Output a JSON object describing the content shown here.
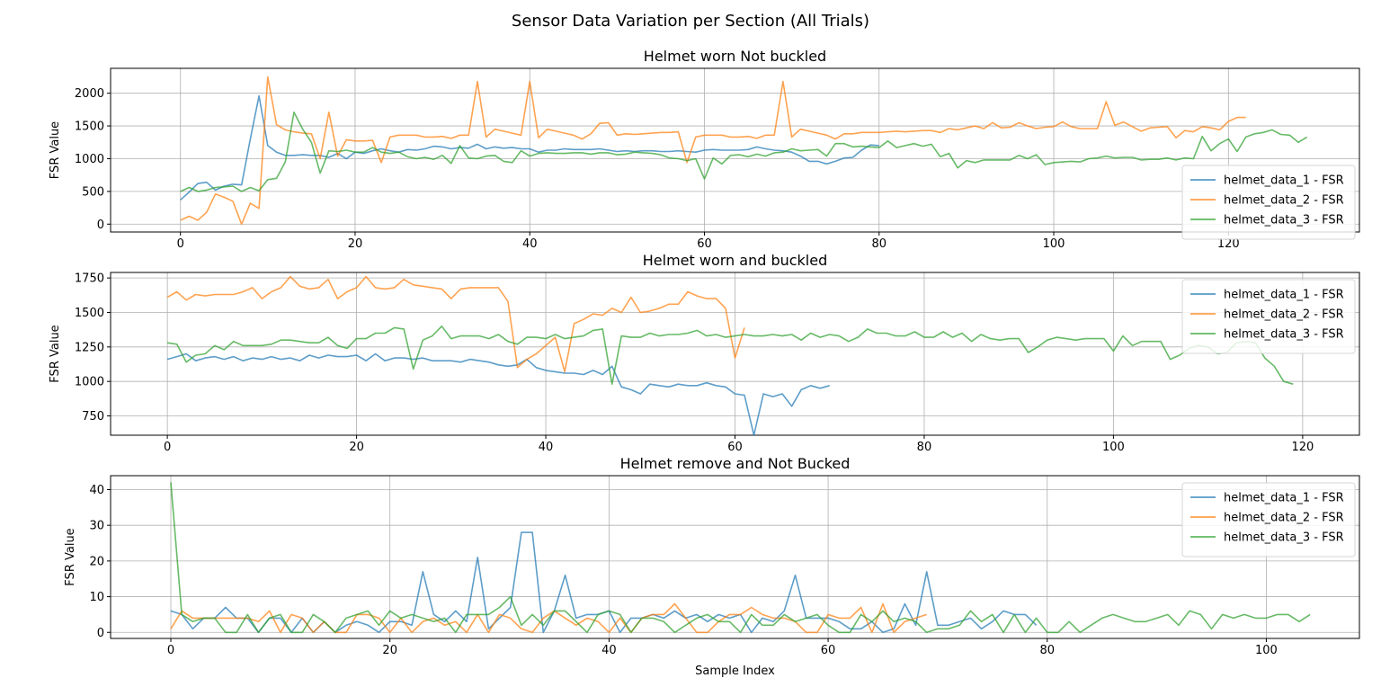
{
  "figure_title": "Sensor Data Variation per Section (All Trials)",
  "chart_data": [
    {
      "type": "line",
      "title": "Helmet worn Not buckled",
      "xlabel": "",
      "ylabel": "FSR Value",
      "xlim": [
        -8,
        135
      ],
      "ylim": [
        -120,
        2380
      ],
      "xticks": [
        0,
        20,
        40,
        60,
        80,
        100,
        120
      ],
      "yticks": [
        0,
        500,
        1000,
        1500,
        2000
      ],
      "grid": true,
      "legend_position": "lower-right",
      "series": [
        {
          "name": "helmet_data_1 - FSR",
          "color": "#1f77b4",
          "values": [
            370,
            490,
            620,
            640,
            520,
            580,
            610,
            600,
            1300,
            1960,
            1200,
            1100,
            1050,
            1050,
            1060,
            1050,
            1050,
            1020,
            1080,
            1000,
            1100,
            1080,
            1120,
            1150,
            1120,
            1100,
            1140,
            1130,
            1150,
            1190,
            1180,
            1150,
            1170,
            1160,
            1220,
            1150,
            1180,
            1160,
            1170,
            1150,
            1150,
            1100,
            1130,
            1130,
            1150,
            1140,
            1140,
            1140,
            1150,
            1130,
            1110,
            1120,
            1110,
            1120,
            1120,
            1110,
            1110,
            1120,
            1110,
            1100,
            1130,
            1140,
            1130,
            1130,
            1130,
            1140,
            1180,
            1150,
            1130,
            1120,
            1100,
            1040,
            960,
            960,
            920,
            960,
            1010,
            1020,
            1130,
            1210,
            1200
          ]
        },
        {
          "name": "helmet_data_2 - FSR",
          "color": "#ff7f0e",
          "values": [
            60,
            120,
            60,
            180,
            460,
            410,
            350,
            0,
            320,
            240,
            2250,
            1520,
            1440,
            1410,
            1390,
            1380,
            1000,
            1710,
            1040,
            1290,
            1270,
            1270,
            1280,
            940,
            1330,
            1360,
            1360,
            1360,
            1330,
            1330,
            1340,
            1310,
            1360,
            1360,
            2180,
            1330,
            1450,
            1420,
            1390,
            1360,
            2180,
            1320,
            1450,
            1420,
            1390,
            1360,
            1300,
            1380,
            1540,
            1550,
            1360,
            1380,
            1370,
            1380,
            1390,
            1400,
            1400,
            1410,
            940,
            1330,
            1360,
            1360,
            1360,
            1330,
            1330,
            1340,
            1310,
            1360,
            1360,
            2180,
            1330,
            1450,
            1420,
            1390,
            1360,
            1300,
            1380,
            1380,
            1400,
            1400,
            1400,
            1410,
            1420,
            1410,
            1420,
            1430,
            1430,
            1400,
            1460,
            1440,
            1470,
            1500,
            1460,
            1550,
            1470,
            1480,
            1550,
            1500,
            1460,
            1480,
            1490,
            1560,
            1490,
            1460,
            1460,
            1460,
            1870,
            1510,
            1560,
            1490,
            1420,
            1470,
            1480,
            1490,
            1320,
            1430,
            1410,
            1490,
            1470,
            1440,
            1570,
            1630,
            1630
          ]
        },
        {
          "name": "helmet_data_3 - FSR",
          "color": "#2ca02c",
          "values": [
            500,
            560,
            500,
            520,
            560,
            570,
            580,
            500,
            560,
            510,
            680,
            700,
            950,
            1710,
            1450,
            1250,
            780,
            1120,
            1110,
            1130,
            1100,
            1100,
            1170,
            1100,
            1080,
            1100,
            1030,
            1000,
            1020,
            990,
            1050,
            930,
            1200,
            1010,
            1000,
            1040,
            1050,
            960,
            940,
            1120,
            1040,
            1080,
            1090,
            1080,
            1080,
            1090,
            1090,
            1070,
            1090,
            1090,
            1060,
            1070,
            1100,
            1090,
            1080,
            1060,
            1010,
            1000,
            970,
            1000,
            690,
            1010,
            920,
            1050,
            1060,
            1030,
            1070,
            1040,
            1090,
            1100,
            1150,
            1120,
            1130,
            1140,
            1040,
            1230,
            1230,
            1180,
            1190,
            1180,
            1170,
            1270,
            1170,
            1200,
            1230,
            1190,
            1220,
            1030,
            1080,
            860,
            970,
            940,
            980,
            980,
            980,
            980,
            1050,
            1000,
            1060,
            910,
            940,
            950,
            960,
            950,
            1000,
            1010,
            1040,
            1010,
            1020,
            1020,
            980,
            990,
            990,
            1010,
            980,
            1010,
            1000,
            1340,
            1120,
            1230,
            1300,
            1110,
            1330,
            1380,
            1400,
            1440,
            1370,
            1360,
            1250,
            1330
          ]
        }
      ]
    },
    {
      "type": "line",
      "title": "Helmet worn and buckled",
      "xlabel": "",
      "ylabel": "FSR Value",
      "xlim": [
        -6,
        126
      ],
      "ylim": [
        610,
        1790
      ],
      "xticks": [
        0,
        20,
        40,
        60,
        80,
        100,
        120
      ],
      "yticks": [
        750,
        1000,
        1250,
        1500,
        1750
      ],
      "grid": true,
      "legend_position": "top-right",
      "series": [
        {
          "name": "helmet_data_1 - FSR",
          "color": "#1f77b4",
          "values": [
            1160,
            1180,
            1200,
            1150,
            1170,
            1180,
            1160,
            1180,
            1150,
            1170,
            1160,
            1180,
            1160,
            1170,
            1150,
            1190,
            1170,
            1190,
            1180,
            1180,
            1190,
            1150,
            1200,
            1150,
            1170,
            1170,
            1160,
            1170,
            1150,
            1150,
            1150,
            1140,
            1160,
            1150,
            1140,
            1120,
            1110,
            1120,
            1160,
            1100,
            1080,
            1070,
            1060,
            1060,
            1050,
            1080,
            1050,
            1110,
            960,
            940,
            910,
            980,
            970,
            960,
            980,
            970,
            970,
            990,
            970,
            960,
            910,
            900,
            610,
            910,
            890,
            910,
            820,
            940,
            970,
            950,
            970
          ]
        },
        {
          "name": "helmet_data_2 - FSR",
          "color": "#ff7f0e",
          "values": [
            1610,
            1650,
            1590,
            1630,
            1620,
            1630,
            1630,
            1630,
            1650,
            1680,
            1600,
            1650,
            1680,
            1760,
            1690,
            1670,
            1680,
            1740,
            1600,
            1650,
            1680,
            1760,
            1680,
            1670,
            1680,
            1740,
            1700,
            1690,
            1680,
            1670,
            1600,
            1670,
            1680,
            1680,
            1680,
            1680,
            1580,
            1100,
            1160,
            1200,
            1260,
            1320,
            1070,
            1420,
            1450,
            1490,
            1480,
            1530,
            1500,
            1610,
            1500,
            1510,
            1530,
            1560,
            1560,
            1650,
            1620,
            1600,
            1600,
            1530,
            1170,
            1390
          ]
        },
        {
          "name": "helmet_data_3 - FSR",
          "color": "#2ca02c",
          "values": [
            1280,
            1270,
            1140,
            1190,
            1200,
            1260,
            1230,
            1290,
            1260,
            1260,
            1260,
            1270,
            1300,
            1300,
            1290,
            1280,
            1280,
            1320,
            1260,
            1240,
            1310,
            1310,
            1350,
            1350,
            1390,
            1380,
            1090,
            1300,
            1330,
            1400,
            1310,
            1330,
            1330,
            1330,
            1310,
            1340,
            1290,
            1270,
            1320,
            1320,
            1310,
            1340,
            1310,
            1320,
            1330,
            1370,
            1380,
            980,
            1330,
            1320,
            1320,
            1350,
            1330,
            1340,
            1340,
            1350,
            1370,
            1330,
            1340,
            1320,
            1330,
            1340,
            1330,
            1330,
            1340,
            1330,
            1340,
            1300,
            1350,
            1320,
            1340,
            1330,
            1290,
            1320,
            1380,
            1350,
            1350,
            1330,
            1330,
            1360,
            1320,
            1320,
            1360,
            1320,
            1350,
            1290,
            1340,
            1310,
            1300,
            1310,
            1310,
            1210,
            1250,
            1300,
            1320,
            1310,
            1300,
            1310,
            1310,
            1310,
            1220,
            1330,
            1260,
            1290,
            1290,
            1290,
            1160,
            1190,
            1240,
            1260,
            1250,
            1200,
            1210,
            1280,
            1290,
            1280,
            1170,
            1110,
            1000,
            980
          ]
        }
      ]
    },
    {
      "type": "line",
      "title": "Helmet remove and Not Bucked",
      "xlabel": "Sample Index",
      "ylabel": "FSR Value",
      "xlim": [
        -5.5,
        108.5
      ],
      "ylim": [
        -1.7,
        43.9
      ],
      "xticks": [
        0,
        20,
        40,
        60,
        80,
        100
      ],
      "yticks": [
        0,
        10,
        20,
        30,
        40
      ],
      "grid": true,
      "legend_position": "top-right",
      "series": [
        {
          "name": "helmet_data_1 - FSR",
          "color": "#1f77b4",
          "values": [
            6,
            5,
            1,
            4,
            4,
            7,
            4,
            4,
            0,
            4,
            4,
            0,
            4,
            0,
            3,
            0,
            2,
            3,
            2,
            0,
            3,
            3,
            2,
            17,
            5,
            3,
            6,
            3,
            21,
            1,
            4,
            7,
            28,
            28,
            0,
            6,
            16,
            4,
            5,
            5,
            6,
            0,
            4,
            4,
            5,
            4,
            6,
            4,
            5,
            3,
            5,
            4,
            5,
            0,
            4,
            3,
            6,
            16,
            4,
            4,
            4,
            3,
            1,
            1,
            3,
            0,
            1,
            8,
            2,
            17,
            2,
            2,
            3,
            4,
            1,
            3,
            6,
            5,
            5,
            2
          ]
        },
        {
          "name": "helmet_data_2 - FSR",
          "color": "#ff7f0e",
          "values": [
            1,
            6,
            4,
            4,
            4,
            4,
            4,
            4,
            3,
            6,
            0,
            5,
            4,
            0,
            3,
            0,
            0,
            5,
            5,
            4,
            0,
            4,
            0,
            3,
            4,
            2,
            3,
            0,
            5,
            0,
            5,
            4,
            1,
            0,
            4,
            6,
            4,
            2,
            4,
            3,
            0,
            4,
            0,
            4,
            5,
            5,
            8,
            4,
            0,
            0,
            3,
            5,
            5,
            7,
            5,
            4,
            4,
            3,
            0,
            0,
            5,
            4,
            4,
            7,
            0,
            8,
            0,
            3,
            4,
            5
          ]
        },
        {
          "name": "helmet_data_3 - FSR",
          "color": "#2ca02c",
          "values": [
            42,
            5,
            3,
            4,
            4,
            0,
            0,
            5,
            0,
            4,
            5,
            0,
            0,
            5,
            3,
            0,
            4,
            5,
            6,
            2,
            6,
            4,
            5,
            4,
            3,
            4,
            0,
            5,
            5,
            5,
            7,
            10,
            2,
            5,
            2,
            6,
            6,
            3,
            0,
            5,
            6,
            5,
            0,
            4,
            4,
            3,
            0,
            2,
            4,
            5,
            3,
            3,
            0,
            5,
            2,
            2,
            5,
            3,
            4,
            5,
            2,
            0,
            0,
            5,
            3,
            6,
            3,
            4,
            3,
            0,
            1,
            1,
            2,
            6,
            3,
            5,
            0,
            5,
            0,
            4,
            0,
            0,
            3,
            0,
            2,
            4,
            5,
            4,
            3,
            3,
            4,
            5,
            2,
            6,
            5,
            1,
            5,
            4,
            5,
            4,
            4,
            5,
            5,
            3,
            5
          ]
        }
      ]
    }
  ]
}
